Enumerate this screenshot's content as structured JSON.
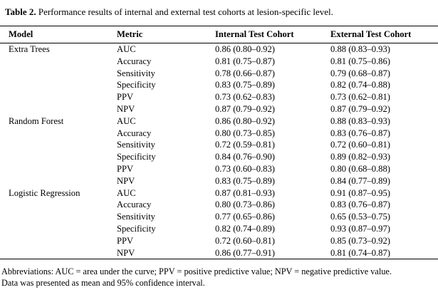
{
  "caption": {
    "label": "Table 2.",
    "text": " Performance results of internal and external test cohorts at lesion-specific level."
  },
  "headers": [
    "Model",
    "Metric",
    "Internal Test Cohort",
    "External Test Cohort"
  ],
  "rows": [
    {
      "model": "Extra Trees",
      "metric": "AUC",
      "internal": "0.86 (0.80–0.92)",
      "external": "0.88 (0.83–0.93)"
    },
    {
      "model": "",
      "metric": "Accuracy",
      "internal": "0.81 (0.75–0.87)",
      "external": "0.81 (0.75–0.86)"
    },
    {
      "model": "",
      "metric": "Sensitivity",
      "internal": "0.78 (0.66–0.87)",
      "external": "0.79 (0.68–0.87)"
    },
    {
      "model": "",
      "metric": "Specificity",
      "internal": "0.83 (0.75–0.89)",
      "external": "0.82 (0.74–0.88)"
    },
    {
      "model": "",
      "metric": "PPV",
      "internal": "0.73 (0.62–0.83)",
      "external": "0.73 (0.62–0.81)"
    },
    {
      "model": "",
      "metric": "NPV",
      "internal": "0.87 (0.79–0.92)",
      "external": "0.87 (0.79–0.92)"
    },
    {
      "model": "Random Forest",
      "metric": "AUC",
      "internal": "0.86 (0.80–0.92)",
      "external": "0.88 (0.83–0.93)"
    },
    {
      "model": "",
      "metric": "Accuracy",
      "internal": "0.80 (0.73–0.85)",
      "external": "0.83 (0.76–0.87)"
    },
    {
      "model": "",
      "metric": "Sensitivity",
      "internal": "0.72 (0.59–0.81)",
      "external": "0.72 (0.60–0.81)"
    },
    {
      "model": "",
      "metric": "Specificity",
      "internal": "0.84 (0.76–0.90)",
      "external": "0.89 (0.82–0.93)"
    },
    {
      "model": "",
      "metric": "PPV",
      "internal": "0.73 (0.60–0.83)",
      "external": "0.80 (0.68–0.88)"
    },
    {
      "model": "",
      "metric": "NPV",
      "internal": "0.83 (0.75–0.89)",
      "external": "0.84 (0.77–0.89)"
    },
    {
      "model": "Logistic Regression",
      "metric": "AUC",
      "internal": "0.87 (0.81–0.93)",
      "external": "0.91 (0.87–0.95)"
    },
    {
      "model": "",
      "metric": "Accuracy",
      "internal": "0.80 (0.73–0.86)",
      "external": "0.83 (0.76–0.87)"
    },
    {
      "model": "",
      "metric": "Sensitivity",
      "internal": "0.77 (0.65–0.86)",
      "external": "0.65 (0.53–0.75)"
    },
    {
      "model": "",
      "metric": "Specificity",
      "internal": "0.82 (0.74–0.89)",
      "external": "0.93 (0.87–0.97)"
    },
    {
      "model": "",
      "metric": "PPV",
      "internal": "0.72 (0.60–0.81)",
      "external": "0.85 (0.73–0.92)"
    },
    {
      "model": "",
      "metric": "NPV",
      "internal": "0.86 (0.77–0.91)",
      "external": "0.81 (0.74–0.87)"
    }
  ],
  "notes": [
    "Abbreviations: AUC = area under the curve; PPV = positive predictive value; NPV = negative predictive value.",
    "Data was presented as mean and 95% confidence interval."
  ]
}
